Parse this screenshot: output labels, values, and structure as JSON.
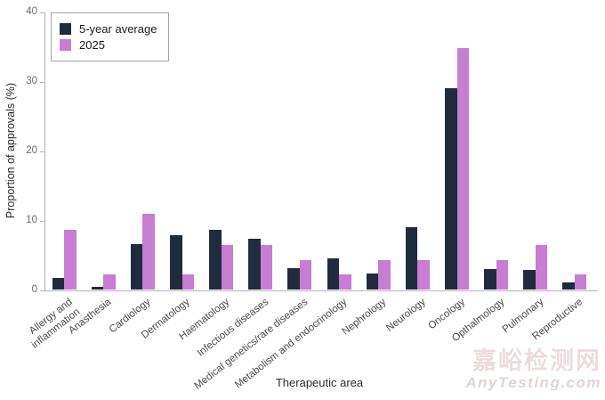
{
  "chart_data": {
    "type": "bar",
    "title": "",
    "xlabel": "Therapeutic area",
    "ylabel": "Proportion of approvals (%)",
    "ylim": [
      0,
      40
    ],
    "yticks": [
      0,
      10,
      20,
      30,
      40
    ],
    "grid": false,
    "legend_position": "upper-left-inside",
    "categories": [
      "Allergy and\ninflammation",
      "Anasthesia",
      "Cardiology",
      "Dermatology",
      "Haematology",
      "Infectious diseases",
      "Medical genetics/rare diseases",
      "Metabolism and endocrinology",
      "Nephrology",
      "Neurology",
      "Oncology",
      "Opthalmology",
      "Pulmonary",
      "Reproductive"
    ],
    "series": [
      {
        "name": "5-year average",
        "color": "#202c3e",
        "values": [
          1.7,
          0.4,
          6.6,
          7.9,
          8.7,
          7.4,
          3.2,
          4.5,
          2.4,
          9.1,
          29.0,
          3.0,
          2.9,
          1.1
        ]
      },
      {
        "name": "2025",
        "color": "#c77dd1",
        "values": [
          8.7,
          2.2,
          10.9,
          2.2,
          6.5,
          6.5,
          4.3,
          2.2,
          4.3,
          4.3,
          34.8,
          4.3,
          6.5,
          2.2
        ]
      }
    ]
  },
  "watermark": {
    "line1": "嘉峪检测网",
    "line2": "AnyTesting.com"
  },
  "colors": {
    "background": "#ffffff",
    "axis": "#b4b4b4",
    "tick_text": "#6b6b6b",
    "label_text": "#2b2b2b",
    "series_dark": "#202c3e",
    "series_pink": "#c77dd1",
    "watermark": "#ecdcdc"
  }
}
